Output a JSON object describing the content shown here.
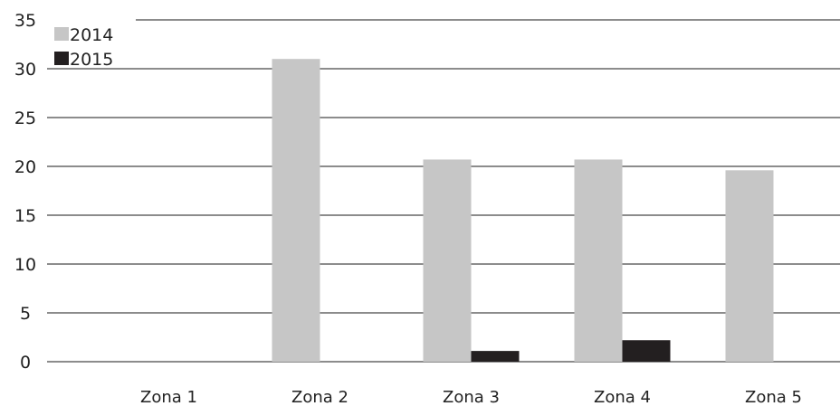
{
  "chart_data": {
    "type": "bar",
    "categories": [
      "Zona 1",
      "Zona 2",
      "Zona 3",
      "Zona 4",
      "Zona 5"
    ],
    "series": [
      {
        "name": "2014",
        "values": [
          0,
          31,
          20.7,
          20.7,
          19.6
        ],
        "color": "#c6c6c6"
      },
      {
        "name": "2015",
        "values": [
          0,
          0,
          1.1,
          2.2,
          0
        ],
        "color": "#231f20"
      }
    ],
    "yticks": [
      0,
      5,
      10,
      15,
      20,
      25,
      30,
      35
    ],
    "ylim": [
      0,
      35
    ],
    "grid": true,
    "legend_position": "top-left",
    "gridline_color": "#1a1a1a"
  }
}
